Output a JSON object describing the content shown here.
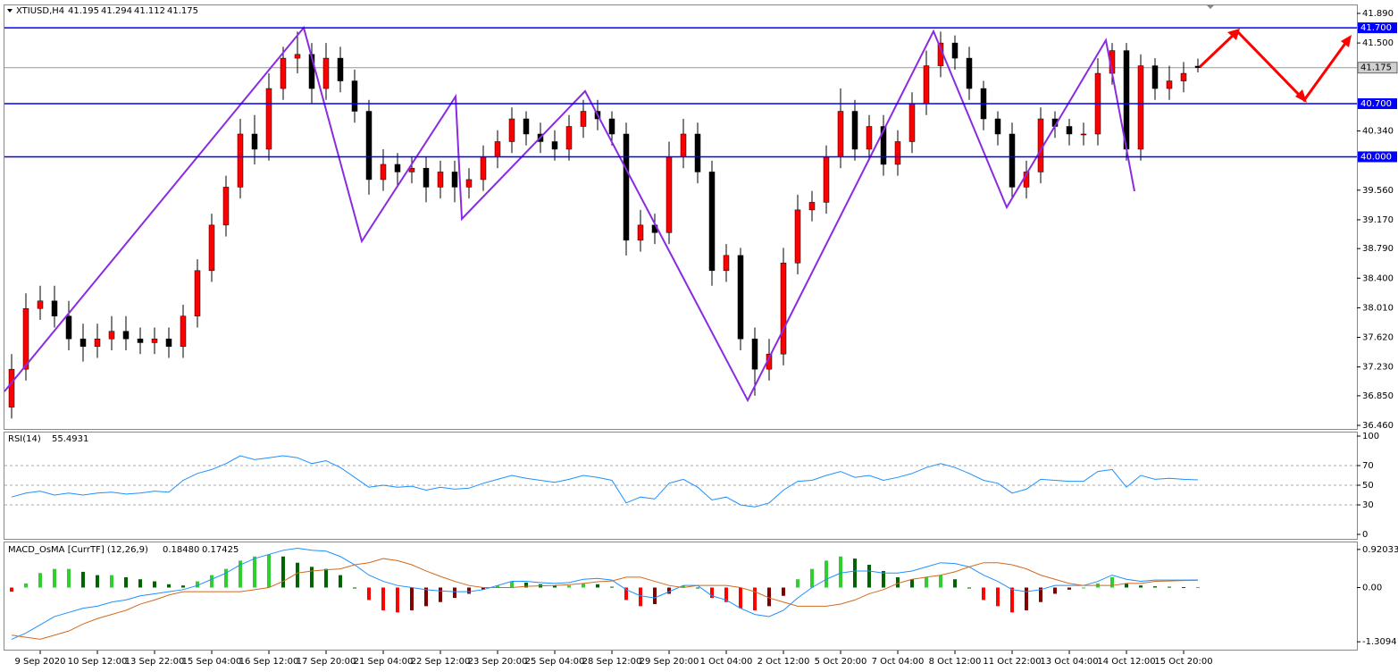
{
  "chart_data": [
    {
      "type": "candlestick",
      "title": "XTIUSD,H4",
      "categories": [
        null,
        null,
        "9 Sep 2020",
        null,
        null,
        null,
        "10 Sep 12:00",
        null,
        null,
        null,
        "13 Sep 22:00",
        null,
        null,
        null,
        "15 Sep 04:00",
        null,
        null,
        null,
        "16 Sep 12:00",
        null,
        null,
        null,
        "17 Sep 20:00",
        null,
        null,
        null,
        "21 Sep 04:00",
        null,
        null,
        null,
        "22 Sep 12:00",
        null,
        null,
        null,
        "23 Sep 20:00",
        null,
        null,
        null,
        "25 Sep 04:00",
        null,
        null,
        null,
        "28 Sep 12:00",
        null,
        null,
        null,
        "29 Sep 20:00",
        null,
        null,
        null,
        "1 Oct 04:00",
        null,
        null,
        null,
        "2 Oct 12:00",
        null,
        null,
        null,
        "5 Oct 20:00",
        null,
        null,
        null,
        "7 Oct 04:00",
        null,
        null,
        null,
        "8 Oct 12:00",
        null,
        null,
        null,
        "11 Oct 22:00",
        null,
        null,
        null,
        "13 Oct 04:00",
        null,
        null,
        null,
        "14 Oct 12:00",
        null,
        null,
        null,
        "15 Oct 20:00",
        null
      ],
      "open": [
        36.7,
        37.2,
        38.0,
        38.1,
        37.9,
        37.6,
        37.5,
        37.6,
        37.7,
        37.6,
        37.55,
        37.6,
        37.5,
        37.9,
        38.5,
        39.1,
        39.6,
        40.3,
        40.1,
        40.9,
        41.3,
        41.35,
        40.9,
        41.3,
        41.0,
        40.6,
        39.7,
        39.9,
        39.8,
        39.85,
        39.6,
        39.8,
        39.6,
        39.7,
        40.0,
        40.2,
        40.5,
        40.3,
        40.2,
        40.1,
        40.4,
        40.6,
        40.5,
        40.3,
        38.9,
        39.1,
        39.0,
        40.0,
        40.3,
        39.8,
        38.5,
        38.7,
        37.6,
        37.2,
        37.4,
        38.6,
        39.3,
        39.4,
        40.0,
        40.6,
        40.1,
        40.4,
        39.9,
        40.2,
        40.7,
        41.2,
        41.5,
        41.3,
        40.9,
        40.5,
        40.3,
        39.6,
        39.8,
        40.5,
        40.4,
        40.3,
        40.3,
        41.1,
        41.4,
        40.1,
        41.2,
        40.9,
        41.0,
        41.195
      ],
      "high": [
        37.4,
        38.2,
        38.3,
        38.3,
        38.1,
        37.8,
        37.8,
        37.9,
        37.9,
        37.75,
        37.75,
        37.75,
        38.05,
        38.65,
        39.25,
        39.75,
        40.5,
        40.55,
        41.1,
        41.45,
        41.65,
        41.5,
        41.5,
        41.45,
        41.15,
        40.75,
        40.1,
        40.05,
        40.0,
        40.0,
        39.95,
        39.95,
        39.85,
        40.15,
        40.35,
        40.65,
        40.6,
        40.45,
        40.35,
        40.55,
        40.75,
        40.75,
        40.6,
        40.45,
        39.3,
        39.25,
        40.2,
        40.5,
        40.45,
        39.95,
        38.85,
        38.8,
        37.75,
        37.6,
        38.8,
        39.5,
        39.55,
        40.15,
        40.9,
        40.75,
        40.55,
        40.55,
        40.35,
        40.85,
        41.4,
        41.65,
        41.6,
        41.45,
        41.0,
        40.6,
        40.45,
        39.95,
        40.65,
        40.6,
        40.5,
        40.45,
        41.3,
        41.5,
        41.5,
        41.35,
        41.3,
        41.2,
        41.25,
        41.294
      ],
      "low": [
        36.55,
        37.05,
        37.85,
        37.75,
        37.45,
        37.3,
        37.35,
        37.45,
        37.45,
        37.4,
        37.4,
        37.35,
        37.35,
        37.75,
        38.35,
        38.95,
        39.45,
        39.9,
        39.95,
        40.75,
        41.1,
        40.7,
        40.75,
        40.85,
        40.45,
        39.5,
        39.55,
        39.6,
        39.65,
        39.4,
        39.45,
        39.4,
        39.45,
        39.55,
        39.85,
        40.05,
        40.15,
        40.05,
        39.95,
        39.95,
        40.25,
        40.35,
        40.15,
        38.7,
        38.75,
        38.85,
        38.85,
        39.85,
        39.65,
        38.3,
        38.35,
        37.45,
        36.85,
        37.05,
        37.25,
        38.45,
        39.15,
        39.25,
        39.85,
        39.95,
        39.95,
        39.75,
        39.75,
        40.05,
        40.55,
        41.05,
        41.15,
        40.75,
        40.35,
        40.15,
        39.45,
        39.45,
        39.65,
        40.25,
        40.15,
        40.15,
        40.15,
        40.95,
        39.95,
        39.95,
        40.75,
        40.75,
        40.85,
        41.112
      ],
      "close": [
        37.2,
        38.0,
        38.1,
        37.9,
        37.6,
        37.5,
        37.6,
        37.7,
        37.6,
        37.55,
        37.6,
        37.5,
        37.9,
        38.5,
        39.1,
        39.6,
        40.3,
        40.1,
        40.9,
        41.3,
        41.35,
        40.9,
        41.3,
        41.0,
        40.6,
        39.7,
        39.9,
        39.8,
        39.85,
        39.6,
        39.8,
        39.6,
        39.7,
        40.0,
        40.2,
        40.5,
        40.3,
        40.2,
        40.1,
        40.4,
        40.6,
        40.5,
        40.3,
        38.9,
        39.1,
        39.0,
        40.0,
        40.3,
        39.8,
        38.5,
        38.7,
        37.6,
        37.2,
        37.4,
        38.6,
        39.3,
        39.4,
        40.0,
        40.6,
        40.1,
        40.4,
        39.9,
        40.2,
        40.7,
        41.2,
        41.5,
        41.3,
        40.9,
        40.5,
        40.3,
        39.6,
        39.8,
        40.5,
        40.4,
        40.3,
        40.3,
        41.1,
        41.4,
        40.1,
        41.2,
        40.9,
        41.0,
        41.1,
        41.175
      ],
      "up_color": "#ff0000",
      "down_color": "#000000",
      "ylim": [
        36.46,
        41.89
      ],
      "yticks": [
        {
          "value": 41.89,
          "label": "41.890"
        },
        {
          "value": 41.5,
          "label": "41.500"
        },
        {
          "value": 40.34,
          "label": "40.340"
        },
        {
          "value": 39.56,
          "label": "39.560"
        },
        {
          "value": 39.17,
          "label": "39.170"
        },
        {
          "value": 38.79,
          "label": "38.790"
        },
        {
          "value": 38.4,
          "label": "38.400"
        },
        {
          "value": 38.01,
          "label": "38.010"
        },
        {
          "value": 37.62,
          "label": "37.620"
        },
        {
          "value": 37.23,
          "label": "37.230"
        },
        {
          "value": 36.85,
          "label": "36.850"
        },
        {
          "value": 36.46,
          "label": "36.460"
        }
      ],
      "levels": [
        {
          "value": 41.7,
          "label": "41.700"
        },
        {
          "value": 40.7,
          "label": "40.700"
        },
        {
          "value": 40.0,
          "label": "40.000"
        }
      ],
      "level_color": "#0000ff"
    },
    {
      "type": "line",
      "title": "RSI(14)",
      "color": "#1e90ff",
      "values": [
        38,
        42,
        44,
        40,
        42,
        40,
        42,
        43,
        41,
        42,
        44,
        43,
        55,
        62,
        66,
        72,
        80,
        76,
        78,
        80,
        78,
        72,
        75,
        68,
        58,
        48,
        50,
        48,
        49,
        45,
        48,
        46,
        47,
        52,
        56,
        60,
        57,
        55,
        53,
        56,
        60,
        58,
        55,
        32,
        38,
        36,
        52,
        56,
        48,
        35,
        38,
        30,
        28,
        32,
        45,
        54,
        55,
        60,
        64,
        58,
        60,
        55,
        58,
        62,
        68,
        72,
        68,
        62,
        55,
        52,
        42,
        46,
        56,
        55,
        54,
        54,
        64,
        66,
        48,
        60,
        56,
        57,
        56,
        55.4931
      ],
      "ylim": [
        0,
        100
      ],
      "yticks": [
        100,
        70,
        50,
        30,
        0
      ],
      "grid": "dashed"
    },
    {
      "type": "macd",
      "title": "MACD_OsMA [CurrTF] (12,26,9)",
      "header_values": [
        {
          "value": 0.1848,
          "label": "0.18480"
        },
        {
          "value": 0.17425,
          "label": "0.17425"
        }
      ],
      "histogram": [
        -0.1,
        0.1,
        0.35,
        0.45,
        0.45,
        0.38,
        0.3,
        0.3,
        0.25,
        0.2,
        0.15,
        0.08,
        0.05,
        0.15,
        0.3,
        0.45,
        0.65,
        0.75,
        0.8,
        0.75,
        0.6,
        0.5,
        0.45,
        0.3,
        0.0,
        -0.3,
        -0.55,
        -0.6,
        -0.55,
        -0.45,
        -0.35,
        -0.25,
        -0.15,
        -0.05,
        0.05,
        0.15,
        0.12,
        0.08,
        0.05,
        0.05,
        0.1,
        0.08,
        0.02,
        -0.3,
        -0.45,
        -0.4,
        -0.15,
        0.05,
        0.0,
        -0.25,
        -0.35,
        -0.5,
        -0.55,
        -0.45,
        -0.2,
        0.2,
        0.45,
        0.65,
        0.75,
        0.7,
        0.55,
        0.4,
        0.25,
        0.2,
        0.25,
        0.3,
        0.2,
        0.0,
        -0.3,
        -0.45,
        -0.6,
        -0.55,
        -0.35,
        -0.15,
        -0.05,
        0.0,
        0.1,
        0.25,
        0.1,
        0.05,
        0.03,
        0.02,
        0.01,
        0.01
      ],
      "histogram_colors": [
        "#32cd32",
        "#006400",
        "#ff0000",
        "#800000"
      ],
      "lines": [
        {
          "color": "#1e90ff",
          "values": [
            -1.25,
            -1.1,
            -0.9,
            -0.7,
            -0.6,
            -0.5,
            -0.45,
            -0.35,
            -0.3,
            -0.2,
            -0.15,
            -0.1,
            -0.05,
            0.05,
            0.2,
            0.35,
            0.55,
            0.7,
            0.8,
            0.9,
            0.95,
            0.9,
            0.88,
            0.75,
            0.55,
            0.3,
            0.15,
            0.05,
            0.0,
            -0.05,
            -0.08,
            -0.1,
            -0.1,
            -0.05,
            0.05,
            0.15,
            0.15,
            0.12,
            0.1,
            0.12,
            0.2,
            0.22,
            0.18,
            -0.05,
            -0.2,
            -0.25,
            -0.1,
            0.05,
            0.05,
            -0.2,
            -0.3,
            -0.5,
            -0.65,
            -0.7,
            -0.55,
            -0.25,
            0.0,
            0.2,
            0.35,
            0.4,
            0.4,
            0.35,
            0.35,
            0.4,
            0.5,
            0.6,
            0.58,
            0.5,
            0.3,
            0.15,
            -0.05,
            -0.1,
            -0.05,
            0.05,
            0.05,
            0.05,
            0.15,
            0.3,
            0.2,
            0.15,
            0.18,
            0.18,
            0.18,
            0.1848
          ]
        },
        {
          "color": "#d2691e",
          "values": [
            -1.15,
            -1.2,
            -1.25,
            -1.15,
            -1.05,
            -0.88,
            -0.75,
            -0.65,
            -0.55,
            -0.4,
            -0.3,
            -0.18,
            -0.1,
            -0.1,
            -0.1,
            -0.1,
            -0.1,
            -0.05,
            0.0,
            0.15,
            0.35,
            0.4,
            0.43,
            0.45,
            0.55,
            0.6,
            0.7,
            0.65,
            0.55,
            0.4,
            0.27,
            0.15,
            0.05,
            0.0,
            0.0,
            0.0,
            0.03,
            0.04,
            0.05,
            0.07,
            0.1,
            0.14,
            0.16,
            0.25,
            0.25,
            0.15,
            0.05,
            0.0,
            0.05,
            0.05,
            0.05,
            0.0,
            -0.1,
            -0.25,
            -0.35,
            -0.45,
            -0.45,
            -0.45,
            -0.4,
            -0.3,
            -0.15,
            -0.05,
            0.1,
            0.2,
            0.25,
            0.3,
            0.38,
            0.5,
            0.6,
            0.6,
            0.55,
            0.45,
            0.3,
            0.2,
            0.1,
            0.05,
            0.05,
            0.05,
            0.1,
            0.1,
            0.15,
            0.16,
            0.17,
            0.17425
          ]
        }
      ],
      "ylim": [
        -1.5,
        1.09
      ],
      "yticks": [
        0.92033,
        {
          "value": 0,
          "label": "0.00"
        },
        -1.3094
      ]
    }
  ]
}
